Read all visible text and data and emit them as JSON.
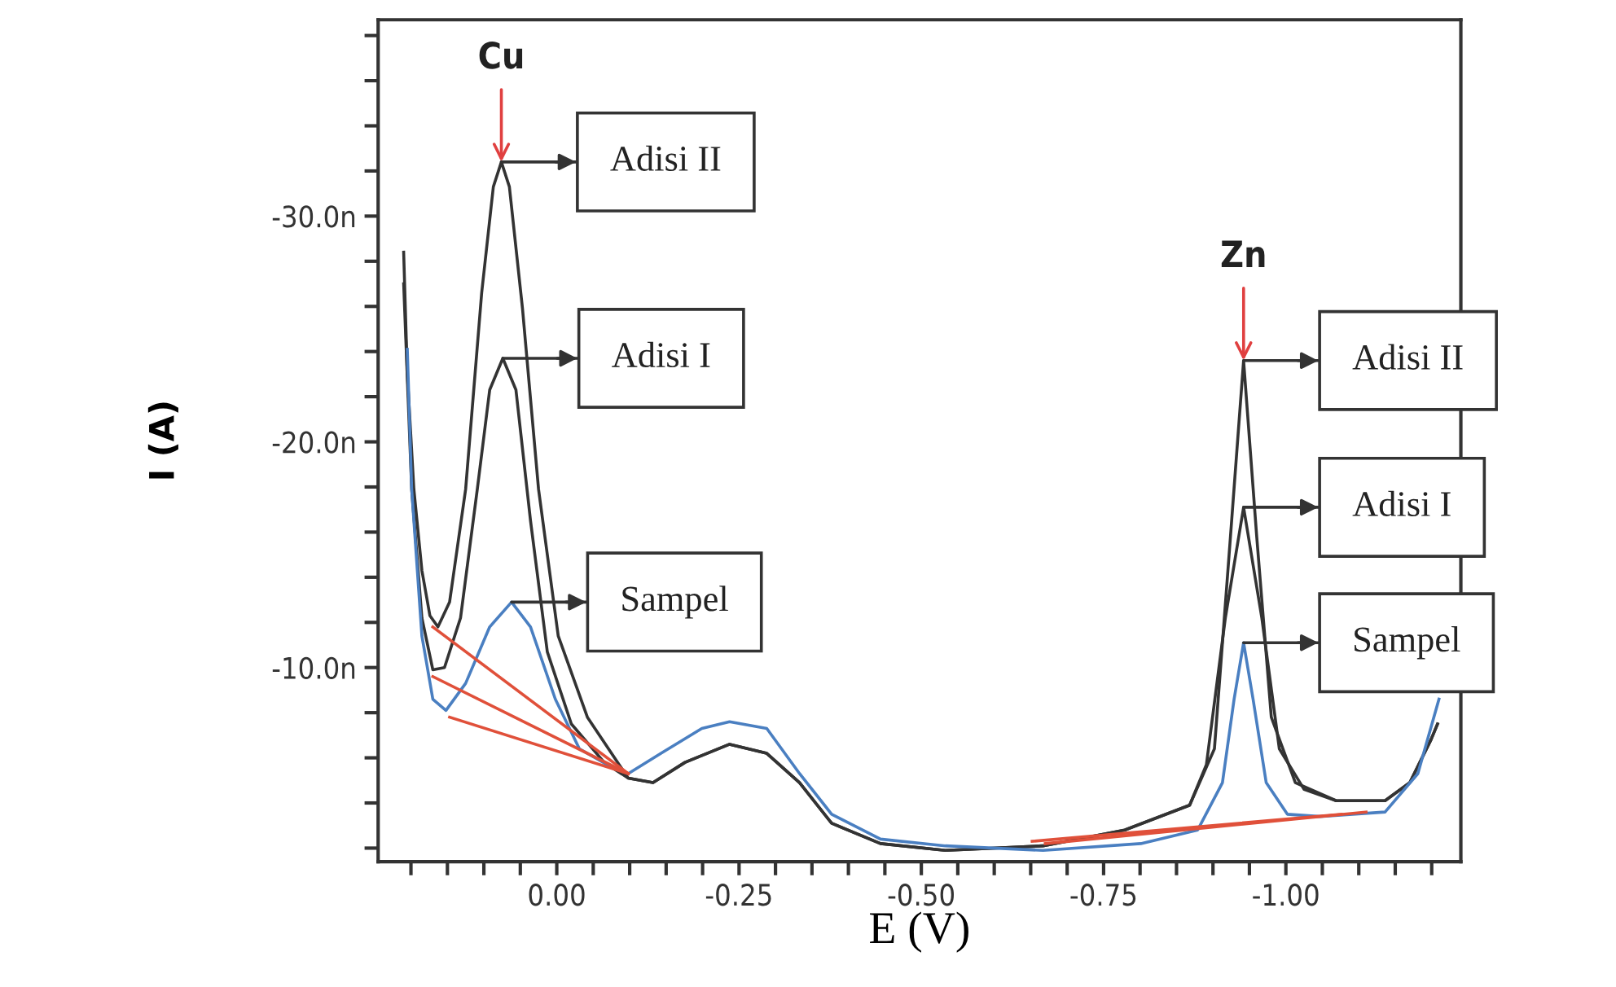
{
  "chart_data": {
    "type": "line",
    "xlabel": "E (V)",
    "ylabel": "I (A)",
    "xlim": [
      0.245,
      -1.24
    ],
    "ylim": [
      -1.4,
      -38.7
    ],
    "xticks": [
      {
        "value": 0.2,
        "label": null
      },
      {
        "value": 0.15,
        "label": null
      },
      {
        "value": 0.1,
        "label": null
      },
      {
        "value": 0.05,
        "label": null
      },
      {
        "value": 0,
        "label": "0.00"
      },
      {
        "value": -0.05,
        "label": null
      },
      {
        "value": -0.1,
        "label": null
      },
      {
        "value": -0.15,
        "label": null
      },
      {
        "value": -0.2,
        "label": null
      },
      {
        "value": -0.25,
        "label": "-0.25"
      },
      {
        "value": -0.3,
        "label": null
      },
      {
        "value": -0.35,
        "label": null
      },
      {
        "value": -0.4,
        "label": null
      },
      {
        "value": -0.45,
        "label": null
      },
      {
        "value": -0.5,
        "label": "-0.50"
      },
      {
        "value": -0.55,
        "label": null
      },
      {
        "value": -0.6,
        "label": null
      },
      {
        "value": -0.65,
        "label": null
      },
      {
        "value": -0.7,
        "label": null
      },
      {
        "value": -0.75,
        "label": "-0.75"
      },
      {
        "value": -0.8,
        "label": null
      },
      {
        "value": -0.85,
        "label": null
      },
      {
        "value": -0.9,
        "label": null
      },
      {
        "value": -0.95,
        "label": null
      },
      {
        "value": -1.0,
        "label": "-1.00"
      },
      {
        "value": -1.05,
        "label": null
      },
      {
        "value": -1.1,
        "label": null
      },
      {
        "value": -1.15,
        "label": null
      },
      {
        "value": -1.2,
        "label": null
      }
    ],
    "yticks": [
      {
        "value": -2,
        "label": null
      },
      {
        "value": -4,
        "label": null
      },
      {
        "value": -6,
        "label": null
      },
      {
        "value": -8,
        "label": null
      },
      {
        "value": -10,
        "label": "-10.0n"
      },
      {
        "value": -12,
        "label": null
      },
      {
        "value": -14,
        "label": null
      },
      {
        "value": -16,
        "label": null
      },
      {
        "value": -18,
        "label": null
      },
      {
        "value": -20,
        "label": "-20.0n"
      },
      {
        "value": -22,
        "label": null
      },
      {
        "value": -24,
        "label": null
      },
      {
        "value": -26,
        "label": null
      },
      {
        "value": -28,
        "label": null
      },
      {
        "value": -30,
        "label": "-30.0n"
      },
      {
        "value": -32,
        "label": null
      },
      {
        "value": -34,
        "label": null
      },
      {
        "value": -36,
        "label": null
      },
      {
        "value": -38,
        "label": null
      }
    ],
    "grid": false,
    "marker": "none",
    "line_style": "solid",
    "series": [
      {
        "color": "#333333",
        "x": [
          0.21,
          0.205,
          0.196,
          0.185,
          0.174,
          0.163,
          0.147,
          0.125,
          0.103,
          0.087,
          0.076,
          0.065,
          0.047,
          0.025,
          -0.002,
          -0.042,
          -0.098,
          -0.132,
          -0.176,
          -0.237,
          -0.288,
          -0.333,
          -0.377,
          -0.444,
          -0.533,
          -0.667,
          -0.779,
          -0.868,
          -0.902,
          -0.924,
          -0.942,
          -0.96,
          -0.98,
          -1.013,
          -1.069,
          -1.136,
          -1.17,
          -1.199,
          -1.208
        ],
        "values": [
          -28.4,
          -23.0,
          -17.9,
          -14.3,
          -12.3,
          -11.8,
          -12.9,
          -17.9,
          -26.6,
          -31.3,
          -32.4,
          -31.3,
          -25.9,
          -17.9,
          -11.4,
          -7.8,
          -5.1,
          -4.9,
          -5.8,
          -6.6,
          -6.2,
          -4.9,
          -3.1,
          -2.2,
          -1.9,
          -2.1,
          -2.8,
          -3.9,
          -6.4,
          -15.8,
          -23.6,
          -15.8,
          -7.8,
          -4.9,
          -4.1,
          -4.1,
          -4.9,
          -6.8,
          -7.5
        ]
      },
      {
        "color": "#333333",
        "x": [
          0.21,
          0.199,
          0.185,
          0.17,
          0.154,
          0.132,
          0.109,
          0.092,
          0.074,
          0.056,
          0.036,
          0.013,
          -0.02,
          -0.065,
          -0.098,
          -0.132,
          -0.176,
          -0.237,
          -0.288,
          -0.333,
          -0.377,
          -0.444,
          -0.533,
          -0.667,
          -0.779,
          -0.868,
          -0.891,
          -0.917,
          -0.942,
          -0.967,
          -0.991,
          -1.025,
          -1.069,
          -1.136,
          -1.17,
          -1.199,
          -1.208
        ],
        "values": [
          -27.0,
          -17.9,
          -12.2,
          -9.9,
          -10.0,
          -12.2,
          -17.9,
          -22.3,
          -23.7,
          -22.3,
          -16.5,
          -10.7,
          -7.5,
          -5.8,
          -5.1,
          -4.9,
          -5.8,
          -6.6,
          -6.2,
          -4.9,
          -3.1,
          -2.2,
          -1.9,
          -2.1,
          -2.8,
          -3.9,
          -5.7,
          -12.2,
          -17.1,
          -12.2,
          -6.4,
          -4.6,
          -4.1,
          -4.1,
          -4.9,
          -6.8,
          -7.5
        ]
      },
      {
        "color": "#4a7fc1",
        "x": [
          0.205,
          0.199,
          0.185,
          0.17,
          0.152,
          0.125,
          0.092,
          0.062,
          0.036,
          0.002,
          -0.031,
          -0.069,
          -0.098,
          -0.143,
          -0.199,
          -0.237,
          -0.288,
          -0.333,
          -0.377,
          -0.444,
          -0.533,
          -0.667,
          -0.801,
          -0.879,
          -0.913,
          -0.929,
          -0.942,
          -0.955,
          -0.973,
          -1.002,
          -1.047,
          -1.136,
          -1.181,
          -1.21
        ],
        "values": [
          -24.1,
          -17.9,
          -11.4,
          -8.6,
          -8.1,
          -9.3,
          -11.8,
          -12.9,
          -11.8,
          -8.6,
          -6.4,
          -5.7,
          -5.3,
          -6.2,
          -7.3,
          -7.6,
          -7.3,
          -5.3,
          -3.5,
          -2.4,
          -2.1,
          -1.9,
          -2.2,
          -2.8,
          -4.9,
          -8.6,
          -11.1,
          -8.6,
          -4.9,
          -3.5,
          -3.4,
          -3.6,
          -5.3,
          -8.6
        ]
      },
      {
        "color": "#e0503a",
        "x": [
          0.17,
          -0.098
        ],
        "values": [
          -11.8,
          -5.3
        ]
      },
      {
        "color": "#e0503a",
        "x": [
          0.17,
          -0.098
        ],
        "values": [
          -9.6,
          -5.3
        ]
      },
      {
        "color": "#e0503a",
        "x": [
          0.147,
          -0.098
        ],
        "values": [
          -7.8,
          -5.3
        ]
      },
      {
        "color": "#e0503a",
        "x": [
          -0.652,
          -1.076
        ],
        "values": [
          -2.3,
          -3.5
        ]
      },
      {
        "color": "#e0503a",
        "x": [
          -0.67,
          -1.11
        ],
        "values": [
          -2.2,
          -3.6
        ]
      }
    ],
    "annotations": [
      {
        "text": "Cu",
        "x": 0.076,
        "y": -32.4
      },
      {
        "text": "Zn",
        "x": -0.942,
        "y": -23.6
      },
      "Adisi II",
      "Adisi I",
      "Sampel",
      "Adisi II",
      "Adisi I",
      "Sampel"
    ]
  }
}
